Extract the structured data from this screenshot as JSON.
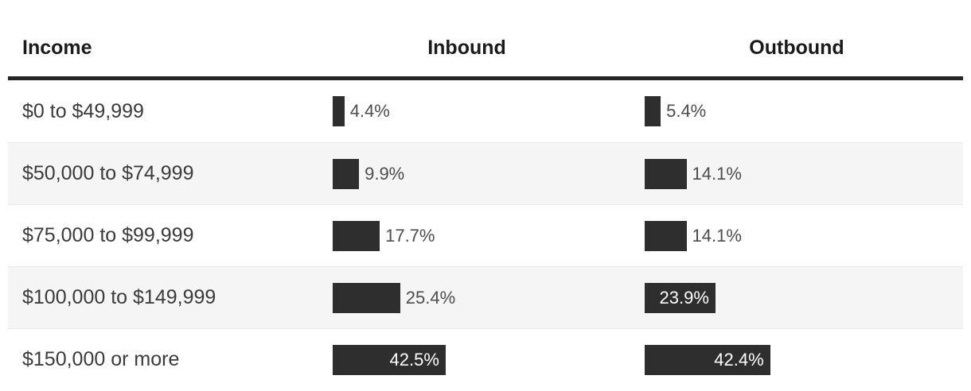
{
  "colors": {
    "bar": "#2e2e2e",
    "header_rule": "#262626",
    "row_alt_bg": "#f5f5f6",
    "row_divider": "#e8e8e8",
    "header_text": "#1b1b1b",
    "income_text": "#3b3b3b",
    "value_text": "#4d4d4d",
    "value_text_inside": "#ffffff"
  },
  "table": {
    "columns": [
      {
        "key": "income",
        "label": "Income"
      },
      {
        "key": "inbound",
        "label": "Inbound"
      },
      {
        "key": "outbound",
        "label": "Outbound"
      }
    ],
    "rows": [
      {
        "income": "$0 to $49,999",
        "inbound": {
          "value": 4.4,
          "label": "4.4%",
          "label_inside": false
        },
        "outbound": {
          "value": 5.4,
          "label": "5.4%",
          "label_inside": false
        }
      },
      {
        "income": "$50,000 to $74,999",
        "inbound": {
          "value": 9.9,
          "label": "9.9%",
          "label_inside": false
        },
        "outbound": {
          "value": 14.1,
          "label": "14.1%",
          "label_inside": false
        }
      },
      {
        "income": "$75,000 to $99,999",
        "inbound": {
          "value": 17.7,
          "label": "17.7%",
          "label_inside": false
        },
        "outbound": {
          "value": 14.1,
          "label": "14.1%",
          "label_inside": false
        }
      },
      {
        "income": "$100,000 to $149,999",
        "inbound": {
          "value": 25.4,
          "label": "25.4%",
          "label_inside": false
        },
        "outbound": {
          "value": 23.9,
          "label": "23.9%",
          "label_inside": true
        }
      },
      {
        "income": "$150,000 or more",
        "inbound": {
          "value": 42.5,
          "label": "42.5%",
          "label_inside": true
        },
        "outbound": {
          "value": 42.4,
          "label": "42.4%",
          "label_inside": true
        }
      }
    ]
  },
  "chart_data": {
    "type": "bar",
    "orientation": "horizontal",
    "title": "",
    "categories": [
      "$0 to $49,999",
      "$50,000 to $74,999",
      "$75,000 to $99,999",
      "$100,000 to $149,999",
      "$150,000 or more"
    ],
    "series": [
      {
        "name": "Inbound",
        "values": [
          4.4,
          9.9,
          17.7,
          25.4,
          42.5
        ]
      },
      {
        "name": "Outbound",
        "values": [
          5.4,
          14.1,
          14.1,
          23.9,
          42.4
        ]
      }
    ],
    "category_axis_label": "Income",
    "value_format": "percent",
    "xlim": [
      0,
      50
    ],
    "grid": false,
    "legend": "column-headers",
    "data_labels": true
  }
}
